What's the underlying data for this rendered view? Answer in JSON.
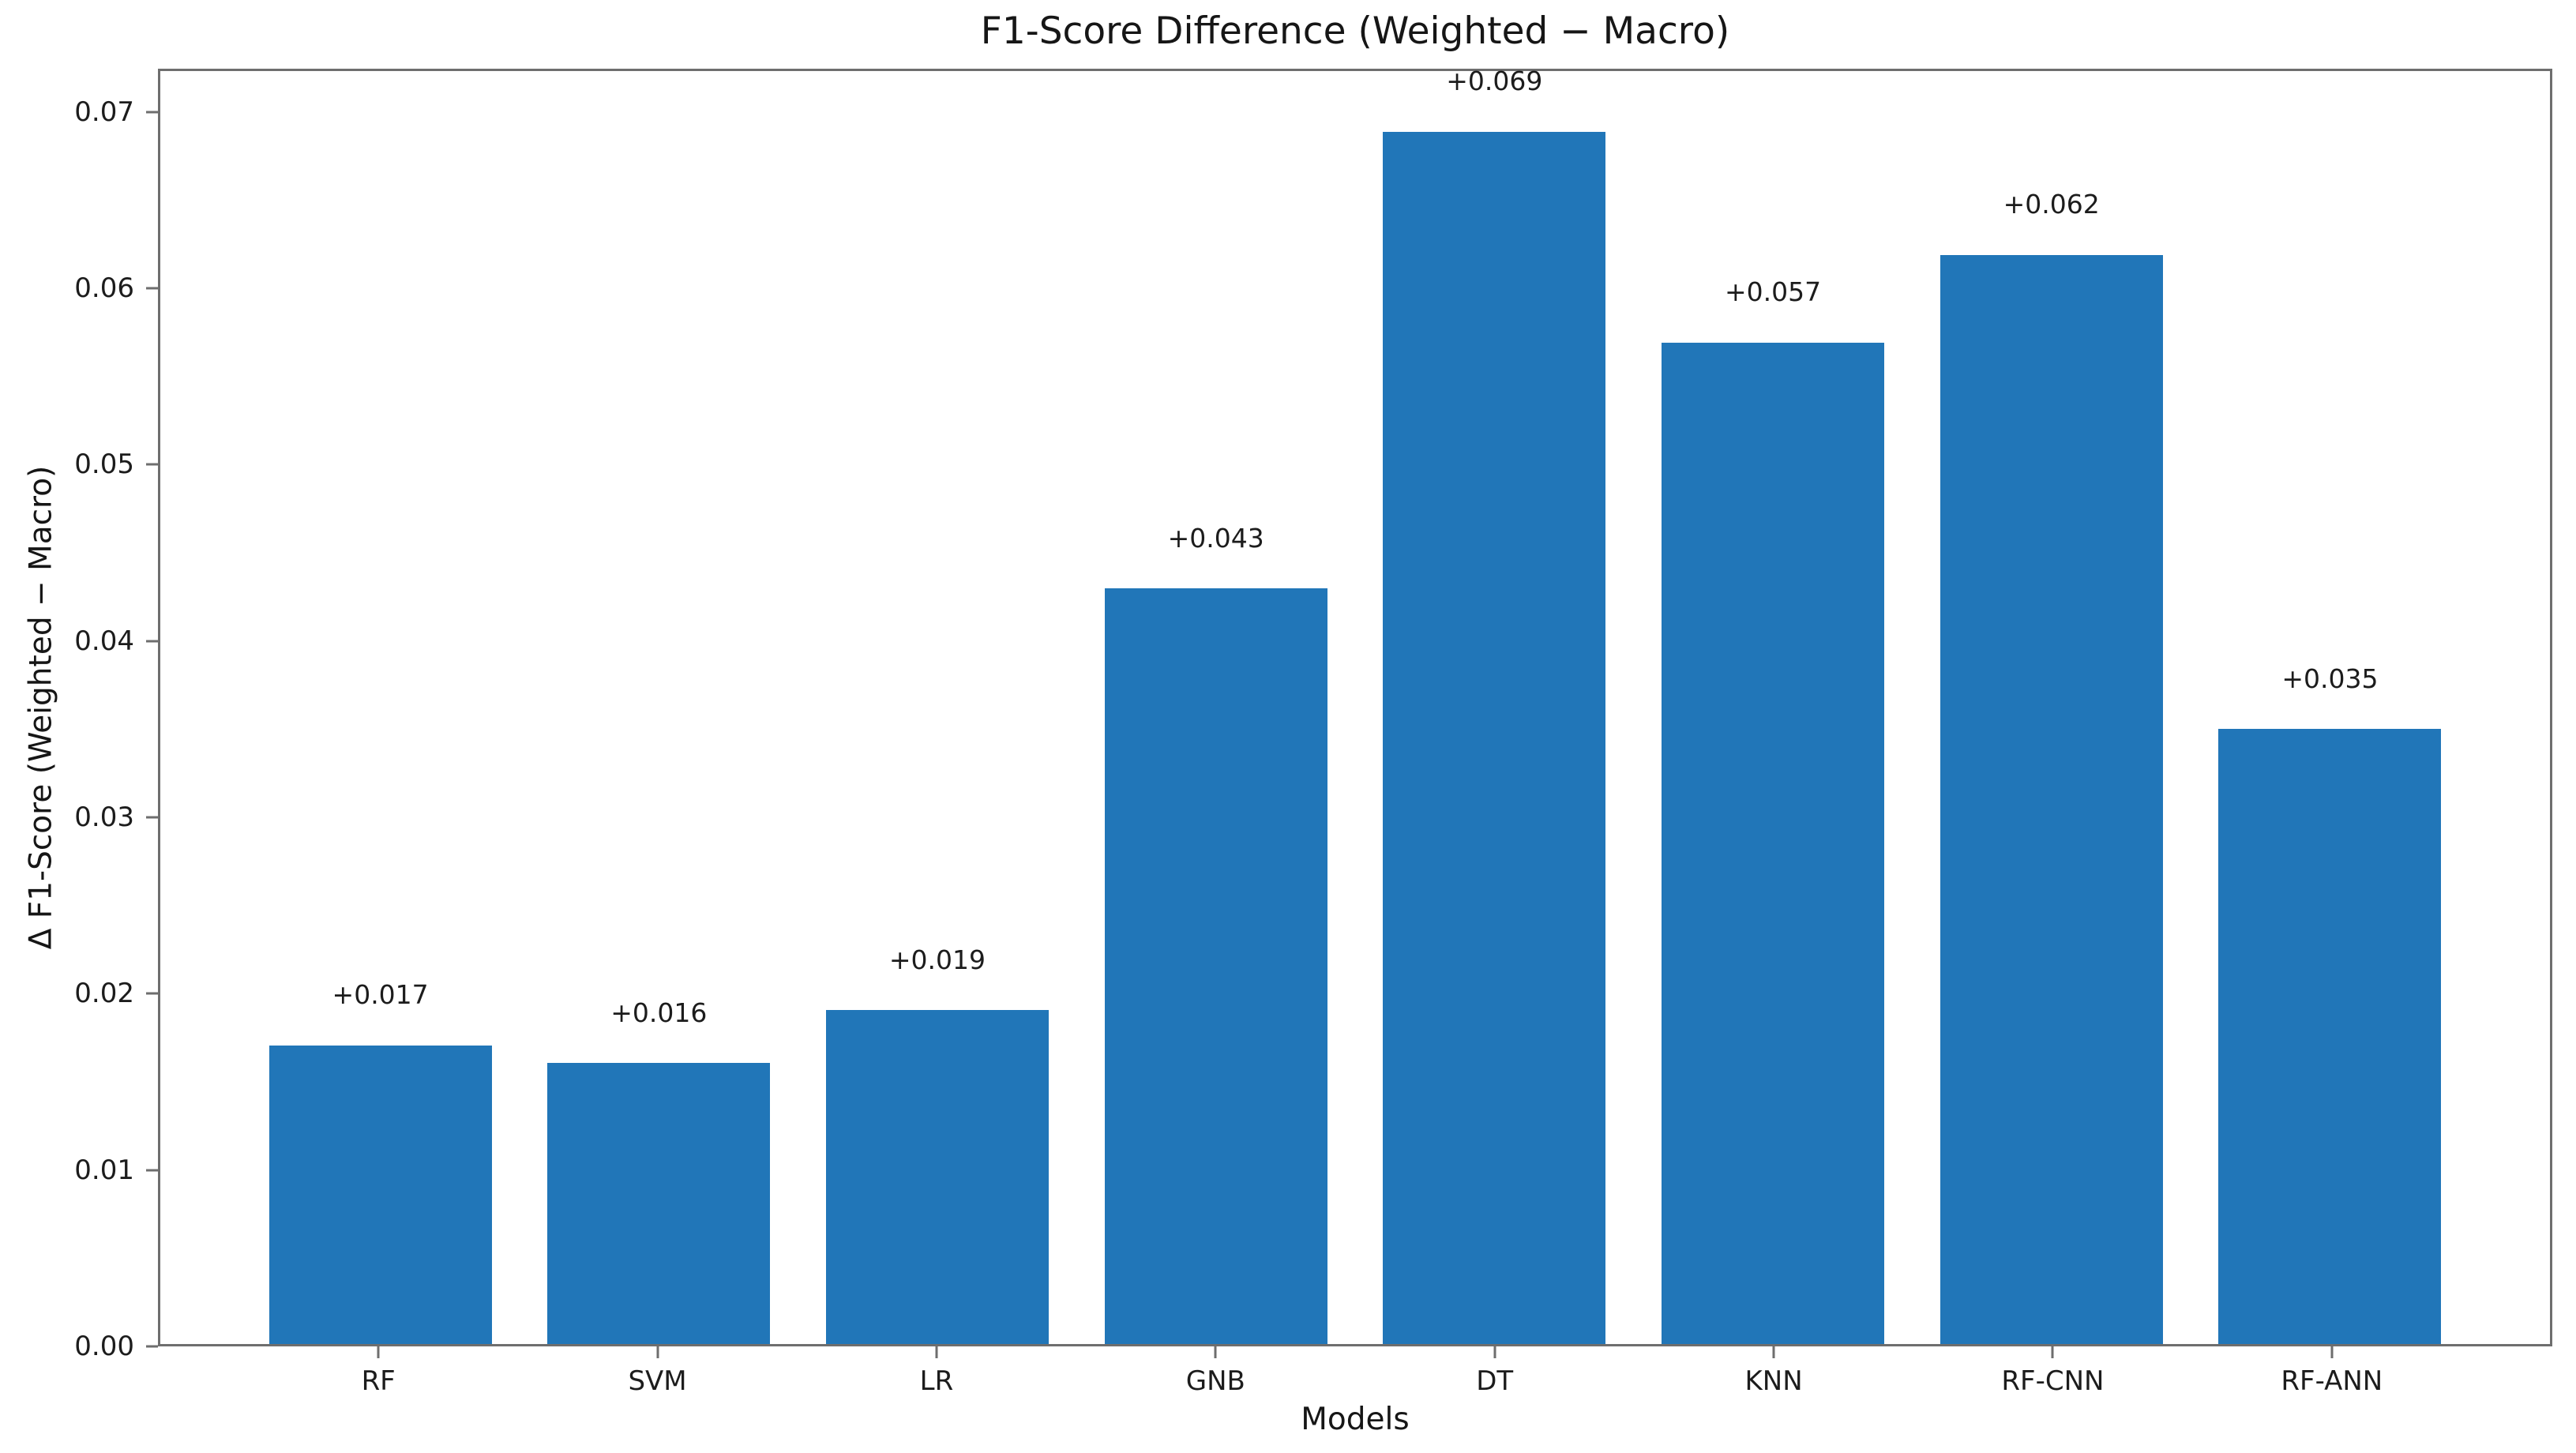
{
  "figure": {
    "background": "#ffffff"
  },
  "chart_data": {
    "type": "bar",
    "title": "F1-Score Difference (Weighted − Macro)",
    "xlabel": "Models",
    "ylabel": "Δ F1-Score (Weighted − Macro)",
    "categories": [
      "RF",
      "SVM",
      "LR",
      "GNB",
      "DT",
      "KNN",
      "RF-CNN",
      "RF-ANN"
    ],
    "values": [
      0.017,
      0.016,
      0.019,
      0.043,
      0.069,
      0.057,
      0.062,
      0.035
    ],
    "bar_value_labels": [
      "+0.017",
      "+0.016",
      "+0.019",
      "+0.043",
      "+0.069",
      "+0.057",
      "+0.062",
      "+0.035"
    ],
    "yticks": [
      {
        "value": 0.0,
        "label": "0.00"
      },
      {
        "value": 0.01,
        "label": "0.01"
      },
      {
        "value": 0.02,
        "label": "0.02"
      },
      {
        "value": 0.03,
        "label": "0.03"
      },
      {
        "value": 0.04,
        "label": "0.04"
      },
      {
        "value": 0.05,
        "label": "0.05"
      },
      {
        "value": 0.06,
        "label": "0.06"
      },
      {
        "value": 0.07,
        "label": "0.07"
      }
    ],
    "ylim": [
      0,
      0.07245
    ],
    "xlim": [
      -0.79,
      7.79
    ],
    "bar_width_units": 0.8,
    "value_label_offset": 0.002,
    "bar_color": "#2176b8",
    "spine_color": "#6e6e6e",
    "text_color": "#1c1c1c",
    "grid": false,
    "legend_position": "none"
  }
}
